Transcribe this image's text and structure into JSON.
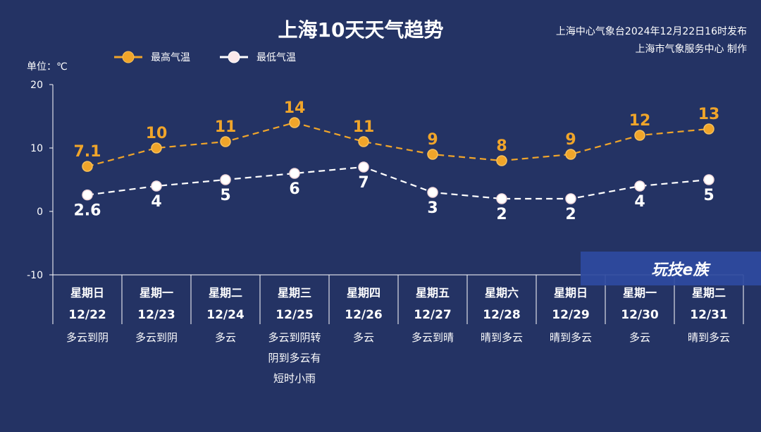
{
  "chart_data": {
    "type": "line",
    "title": "上海10天天气趋势",
    "issuer_line1": "上海中心气象台2024年12月22日16时发布",
    "issuer_line2": "上海市气象服务中心 制作",
    "unit_label": "单位：℃",
    "ylim": [
      -10,
      20
    ],
    "yticks": [
      "20",
      "10",
      "0",
      "-10"
    ],
    "grid": false,
    "legend_position": "top-left",
    "days": [
      "星期日",
      "星期一",
      "星期二",
      "星期三",
      "星期四",
      "星期五",
      "星期六",
      "星期日",
      "星期一",
      "星期二"
    ],
    "dates": [
      "12/22",
      "12/23",
      "12/24",
      "12/25",
      "12/26",
      "12/27",
      "12/28",
      "12/29",
      "12/30",
      "12/31"
    ],
    "weather": [
      [
        "多云到阴"
      ],
      [
        "多云到阴"
      ],
      [
        "多云"
      ],
      [
        "多云到阴转",
        "阴到多云有",
        "短时小雨"
      ],
      [
        "多云"
      ],
      [
        "多云到晴"
      ],
      [
        "晴到多云"
      ],
      [
        "晴到多云"
      ],
      [
        "多云"
      ],
      [
        "晴到多云"
      ]
    ],
    "series": [
      {
        "name": "最高气温",
        "color": "#f0a52a",
        "values": [
          7.1,
          10,
          11,
          14,
          11,
          9,
          8,
          9,
          12,
          13
        ],
        "labels": [
          "7.1",
          "10",
          "11",
          "14",
          "11",
          "9",
          "8",
          "9",
          "12",
          "13"
        ]
      },
      {
        "name": "最低气温",
        "color": "#ffffff",
        "values": [
          2.6,
          4,
          5,
          6,
          7,
          3,
          2,
          2,
          4,
          5
        ],
        "labels": [
          "2.6",
          "4",
          "5",
          "6",
          "7",
          "3",
          "2",
          "2",
          "4",
          "5"
        ]
      }
    ]
  },
  "watermark": {
    "text": "玩技e族"
  }
}
